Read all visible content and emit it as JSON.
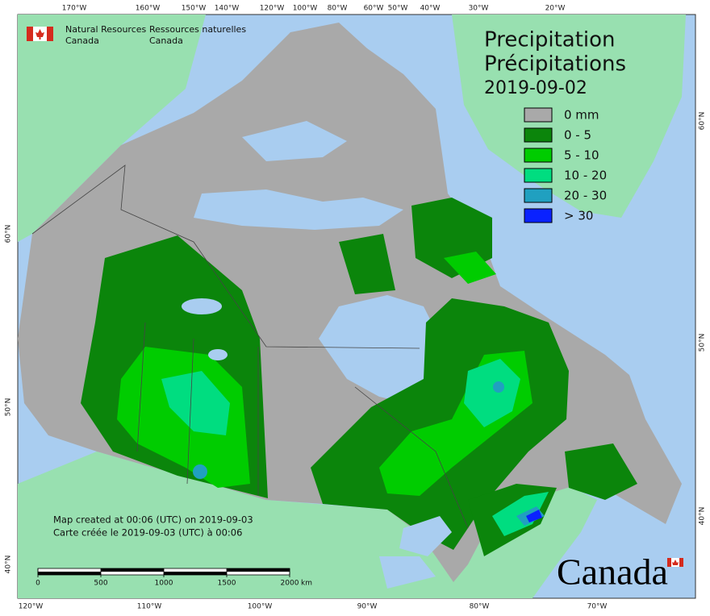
{
  "header": {
    "agency_en": [
      "Natural Resources",
      "Canada"
    ],
    "agency_fr": [
      "Ressources naturelles",
      "Canada"
    ]
  },
  "title": {
    "en": "Precipitation",
    "fr": "Précipitations",
    "date": "2019-09-02"
  },
  "legend": [
    {
      "label": "0 mm",
      "color": "#a9a9a9"
    },
    {
      "label": "0 - 5",
      "color": "#0b850b"
    },
    {
      "label": "5 - 10",
      "color": "#00cc00"
    },
    {
      "label": "10 - 20",
      "color": "#00dd80"
    },
    {
      "label": "20 - 30",
      "color": "#20a0c0"
    },
    {
      "label": "> 30",
      "color": "#0a22ff"
    }
  ],
  "credits": [
    "Map created at 00:06 (UTC) on 2019-09-03",
    "Carte créée le 2019-09-03 (UTC) à 00:06"
  ],
  "scale_bar": {
    "ticks": [
      0,
      500,
      1000,
      1500,
      2000
    ],
    "unit": "km"
  },
  "graticule": {
    "top": [
      "170°W",
      "160°W",
      "150°W",
      "140°W",
      "120°W",
      "100°W",
      "80°W",
      "60°W",
      "50°W",
      "40°W",
      "30°W",
      "20°W"
    ],
    "bottom": [
      "120°W",
      "110°W",
      "100°W",
      "90°W",
      "80°W",
      "70°W"
    ],
    "left": [
      "60°N",
      "50°N",
      "40°N"
    ],
    "right": [
      "60°N",
      "50°N",
      "40°N"
    ]
  },
  "wordmark": "Canada"
}
